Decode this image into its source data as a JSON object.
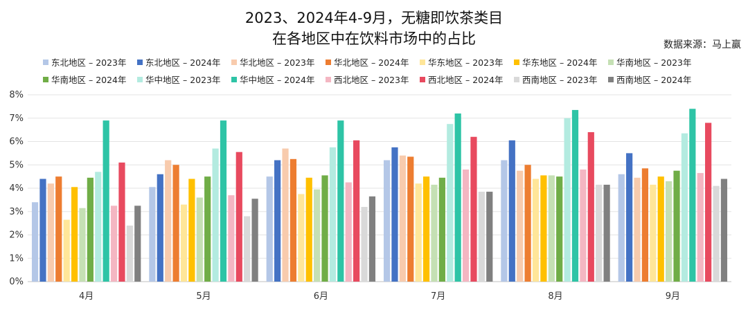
{
  "title_line1": "2023、2024年4-9月，无糖即饮茶类目",
  "title_line2": "在各地区中在饮料市场中的占比",
  "source": "数据来源：马上赢",
  "chart_data": {
    "type": "bar",
    "title": "2023、2024年4-9月，无糖即饮茶类目在各地区中在饮料市场中的占比",
    "categories": [
      "4月",
      "5月",
      "6月",
      "7月",
      "8月",
      "9月"
    ],
    "ylim": [
      0,
      8
    ],
    "yticks": [
      "0%",
      "1%",
      "2%",
      "3%",
      "4%",
      "5%",
      "6%",
      "7%",
      "8%"
    ],
    "y_unit": "%",
    "grid": true,
    "legend_position": "top",
    "series": [
      {
        "name": "东北地区 – 2023年",
        "color": "#b4c7e7",
        "values": [
          3.4,
          4.05,
          4.5,
          5.2,
          5.2,
          4.6
        ]
      },
      {
        "name": "东北地区 – 2024年",
        "color": "#4472c4",
        "values": [
          4.4,
          4.6,
          5.2,
          5.75,
          6.05,
          5.5
        ]
      },
      {
        "name": "华北地区 – 2023年",
        "color": "#f8cbad",
        "values": [
          4.2,
          5.2,
          5.7,
          5.4,
          4.75,
          4.45
        ]
      },
      {
        "name": "华北地区 – 2024年",
        "color": "#ed7d31",
        "values": [
          4.5,
          5.0,
          5.25,
          5.35,
          5.0,
          4.85
        ]
      },
      {
        "name": "华东地区 – 2023年",
        "color": "#ffe699",
        "values": [
          2.65,
          3.3,
          3.75,
          4.2,
          4.4,
          4.15
        ]
      },
      {
        "name": "华东地区 – 2024年",
        "color": "#ffc000",
        "values": [
          4.05,
          4.4,
          4.45,
          4.5,
          4.55,
          4.5
        ]
      },
      {
        "name": "华南地区 – 2023年",
        "color": "#c5e0b4",
        "values": [
          3.15,
          3.6,
          3.95,
          4.15,
          4.55,
          4.3
        ]
      },
      {
        "name": "华南地区 – 2024年",
        "color": "#70ad47",
        "values": [
          4.45,
          4.5,
          4.55,
          4.45,
          4.5,
          4.75
        ]
      },
      {
        "name": "华中地区 – 2023年",
        "color": "#b3ebe0",
        "values": [
          4.7,
          5.7,
          5.75,
          6.75,
          7.0,
          6.35
        ]
      },
      {
        "name": "华中地区 – 2024年",
        "color": "#2ec4a6",
        "values": [
          6.9,
          6.9,
          6.9,
          7.2,
          7.35,
          7.4
        ]
      },
      {
        "name": "西北地区 – 2023年",
        "color": "#f4b6c2",
        "values": [
          3.25,
          3.7,
          4.25,
          4.8,
          4.8,
          4.65
        ]
      },
      {
        "name": "西北地区 – 2024年",
        "color": "#e84a5f",
        "values": [
          5.1,
          5.55,
          6.05,
          6.2,
          6.4,
          6.8
        ]
      },
      {
        "name": "西南地区 – 2023年",
        "color": "#d9d9d9",
        "values": [
          2.4,
          2.8,
          3.2,
          3.85,
          4.15,
          4.1
        ]
      },
      {
        "name": "西南地区 – 2024年",
        "color": "#808080",
        "values": [
          3.25,
          3.55,
          3.65,
          3.85,
          4.15,
          4.4
        ]
      }
    ]
  }
}
